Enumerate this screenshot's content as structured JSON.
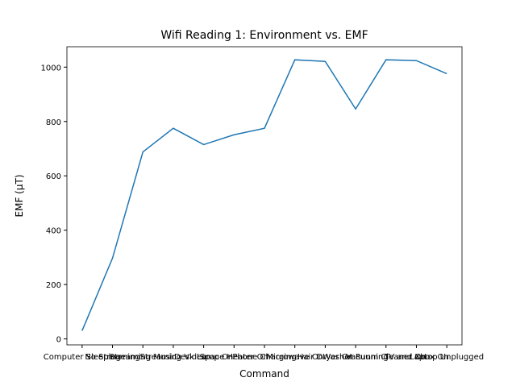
{
  "chart_data": {
    "type": "line",
    "title": "Wifi Reading 1: Environment vs. EMF",
    "x_label": "Command",
    "y_label": "EMF (µT)",
    "categories": [
      "Computer Sleeping",
      "No Streaming",
      "Streaming Music",
      "Streaming Video",
      "Desk Lamp On",
      "Space Heater On",
      "Phone Charging",
      "Microwave On",
      "Hair Dryer On",
      "Washer Running",
      "Vacuum Cleaner On",
      "TV and Xbox On",
      "Laptop Unplugged"
    ],
    "series": [
      {
        "name": "EMF",
        "color": "#1f77b4",
        "values": [
          30,
          297,
          688,
          775,
          715,
          751,
          775,
          1027,
          1021,
          846,
          1027,
          1024,
          976
        ]
      }
    ],
    "ylim": [
      -22,
      1075
    ],
    "yticks": [
      0,
      200,
      400,
      600,
      800,
      1000
    ]
  }
}
